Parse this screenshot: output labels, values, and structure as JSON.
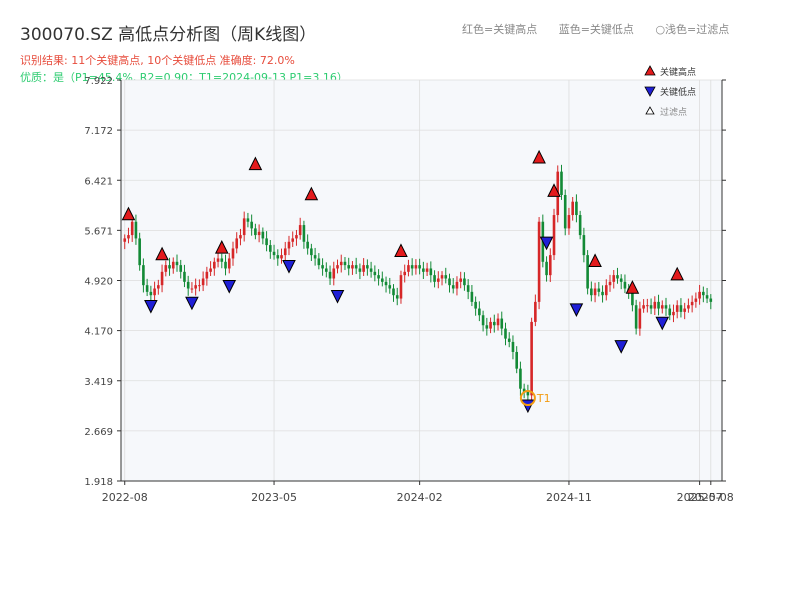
{
  "title": "300070.SZ 高低点分析图（周K线图）",
  "subtitle_result": "识别结果: 11个关键高点, 10个关键低点   准确度: 72.0%",
  "subtitle_quality": "优质：是（P1=45.4%, R2=0.90；T1=2024-09-13 P1=3.16）",
  "header_legend": [
    "红色=关键高点",
    "蓝色=关键低点",
    "○浅色=过滤点"
  ],
  "legend": {
    "high": "关键高点",
    "low": "关键低点",
    "filtered": "过滤点"
  },
  "colors": {
    "up": "#d62728",
    "down": "#138a36",
    "high_marker": "#e31a1c",
    "low_marker": "#1f1fd6",
    "t1": "#f39c12",
    "grid": "#dddddd",
    "plot_bg": "#f6f8fb"
  },
  "chart_data": {
    "type": "candlestick",
    "y_ticks": [
      "1.918",
      "2.669",
      "3.419",
      "4.170",
      "4.920",
      "5.671",
      "6.421",
      "7.172",
      "7.922"
    ],
    "ylim": [
      1.918,
      7.922
    ],
    "x_ticks": [
      {
        "label": "2022-08",
        "week": 0
      },
      {
        "label": "2023-05",
        "week": 40
      },
      {
        "label": "2024-02",
        "week": 79
      },
      {
        "label": "2024-11",
        "week": 119
      },
      {
        "label": "2025-07",
        "week": 154
      },
      {
        "label": "2025-08",
        "week": 157
      }
    ],
    "xlim": [
      -1,
      160
    ],
    "t1_annotation": {
      "label": "T1",
      "week": 108,
      "value": 3.16
    },
    "close_path": [
      [
        0,
        5.55
      ],
      [
        1,
        5.6
      ],
      [
        2,
        5.8
      ],
      [
        3,
        5.55
      ],
      [
        4,
        5.15
      ],
      [
        5,
        4.85
      ],
      [
        6,
        4.75
      ],
      [
        7,
        4.7
      ],
      [
        8,
        4.8
      ],
      [
        9,
        4.85
      ],
      [
        10,
        5.05
      ],
      [
        11,
        5.15
      ],
      [
        12,
        5.1
      ],
      [
        13,
        5.2
      ],
      [
        14,
        5.15
      ],
      [
        15,
        5.05
      ],
      [
        16,
        4.9
      ],
      [
        17,
        4.8
      ],
      [
        18,
        4.8
      ],
      [
        19,
        4.85
      ],
      [
        20,
        4.85
      ],
      [
        21,
        4.95
      ],
      [
        22,
        5.05
      ],
      [
        23,
        5.1
      ],
      [
        24,
        5.2
      ],
      [
        25,
        5.25
      ],
      [
        26,
        5.2
      ],
      [
        27,
        5.1
      ],
      [
        28,
        5.25
      ],
      [
        29,
        5.4
      ],
      [
        30,
        5.55
      ],
      [
        31,
        5.6
      ],
      [
        32,
        5.85
      ],
      [
        33,
        5.8
      ],
      [
        34,
        5.7
      ],
      [
        35,
        5.6
      ],
      [
        36,
        5.65
      ],
      [
        37,
        5.55
      ],
      [
        38,
        5.45
      ],
      [
        39,
        5.35
      ],
      [
        40,
        5.3
      ],
      [
        41,
        5.25
      ],
      [
        42,
        5.3
      ],
      [
        43,
        5.4
      ],
      [
        44,
        5.5
      ],
      [
        45,
        5.55
      ],
      [
        46,
        5.6
      ],
      [
        47,
        5.75
      ],
      [
        48,
        5.5
      ],
      [
        49,
        5.4
      ],
      [
        50,
        5.3
      ],
      [
        51,
        5.25
      ],
      [
        52,
        5.15
      ],
      [
        53,
        5.1
      ],
      [
        54,
        5.05
      ],
      [
        55,
        4.95
      ],
      [
        56,
        5.1
      ],
      [
        57,
        5.15
      ],
      [
        58,
        5.2
      ],
      [
        59,
        5.15
      ],
      [
        60,
        5.1
      ],
      [
        61,
        5.15
      ],
      [
        62,
        5.1
      ],
      [
        63,
        5.05
      ],
      [
        64,
        5.15
      ],
      [
        65,
        5.1
      ],
      [
        66,
        5.05
      ],
      [
        67,
        5.0
      ],
      [
        68,
        4.95
      ],
      [
        69,
        4.9
      ],
      [
        70,
        4.85
      ],
      [
        71,
        4.8
      ],
      [
        72,
        4.7
      ],
      [
        73,
        4.65
      ],
      [
        74,
        5.0
      ],
      [
        75,
        5.05
      ],
      [
        76,
        5.15
      ],
      [
        77,
        5.1
      ],
      [
        78,
        5.15
      ],
      [
        79,
        5.1
      ],
      [
        80,
        5.05
      ],
      [
        81,
        5.1
      ],
      [
        82,
        5.0
      ],
      [
        83,
        4.9
      ],
      [
        84,
        4.95
      ],
      [
        85,
        5.0
      ],
      [
        86,
        4.95
      ],
      [
        87,
        4.85
      ],
      [
        88,
        4.8
      ],
      [
        89,
        4.9
      ],
      [
        90,
        4.95
      ],
      [
        91,
        4.85
      ],
      [
        92,
        4.75
      ],
      [
        93,
        4.6
      ],
      [
        94,
        4.5
      ],
      [
        95,
        4.4
      ],
      [
        96,
        4.25
      ],
      [
        97,
        4.2
      ],
      [
        98,
        4.3
      ],
      [
        99,
        4.25
      ],
      [
        100,
        4.35
      ],
      [
        101,
        4.2
      ],
      [
        102,
        4.05
      ],
      [
        103,
        4.0
      ],
      [
        104,
        3.85
      ],
      [
        105,
        3.6
      ],
      [
        106,
        3.3
      ],
      [
        107,
        3.25
      ],
      [
        108,
        3.2
      ],
      [
        109,
        4.3
      ],
      [
        110,
        4.6
      ],
      [
        111,
        5.8
      ],
      [
        112,
        5.2
      ],
      [
        113,
        5.0
      ],
      [
        114,
        5.3
      ],
      [
        115,
        5.9
      ],
      [
        116,
        6.55
      ],
      [
        117,
        6.2
      ],
      [
        118,
        5.7
      ],
      [
        119,
        5.9
      ],
      [
        120,
        6.1
      ],
      [
        121,
        5.9
      ],
      [
        122,
        5.6
      ],
      [
        123,
        5.3
      ],
      [
        124,
        4.8
      ],
      [
        125,
        4.7
      ],
      [
        126,
        4.8
      ],
      [
        127,
        4.75
      ],
      [
        128,
        4.7
      ],
      [
        129,
        4.85
      ],
      [
        130,
        4.9
      ],
      [
        131,
        5.0
      ],
      [
        132,
        4.95
      ],
      [
        133,
        4.9
      ],
      [
        134,
        4.8
      ],
      [
        135,
        4.75
      ],
      [
        136,
        4.55
      ],
      [
        137,
        4.2
      ],
      [
        138,
        4.5
      ],
      [
        139,
        4.55
      ],
      [
        140,
        4.55
      ],
      [
        141,
        4.5
      ],
      [
        142,
        4.6
      ],
      [
        143,
        4.5
      ],
      [
        144,
        4.55
      ],
      [
        145,
        4.5
      ],
      [
        146,
        4.4
      ],
      [
        147,
        4.45
      ],
      [
        148,
        4.55
      ],
      [
        149,
        4.45
      ],
      [
        150,
        4.5
      ],
      [
        151,
        4.55
      ],
      [
        152,
        4.6
      ],
      [
        153,
        4.65
      ],
      [
        154,
        4.75
      ],
      [
        155,
        4.7
      ],
      [
        156,
        4.65
      ],
      [
        157,
        4.6
      ]
    ],
    "key_highs": [
      {
        "week": 1,
        "value": 5.8
      },
      {
        "week": 10,
        "value": 5.2
      },
      {
        "week": 26,
        "value": 5.3
      },
      {
        "week": 35,
        "value": 6.55
      },
      {
        "week": 50,
        "value": 6.1
      },
      {
        "week": 74,
        "value": 5.25
      },
      {
        "week": 111,
        "value": 6.65
      },
      {
        "week": 115,
        "value": 6.15
      },
      {
        "week": 126,
        "value": 5.1
      },
      {
        "week": 136,
        "value": 4.7
      },
      {
        "week": 148,
        "value": 4.9
      }
    ],
    "key_lows": [
      {
        "week": 7,
        "value": 4.65
      },
      {
        "week": 18,
        "value": 4.7
      },
      {
        "week": 28,
        "value": 4.95
      },
      {
        "week": 44,
        "value": 5.25
      },
      {
        "week": 57,
        "value": 4.8
      },
      {
        "week": 108,
        "value": 3.16
      },
      {
        "week": 113,
        "value": 5.6
      },
      {
        "week": 121,
        "value": 4.6
      },
      {
        "week": 133,
        "value": 4.05
      },
      {
        "week": 144,
        "value": 4.4
      }
    ]
  }
}
